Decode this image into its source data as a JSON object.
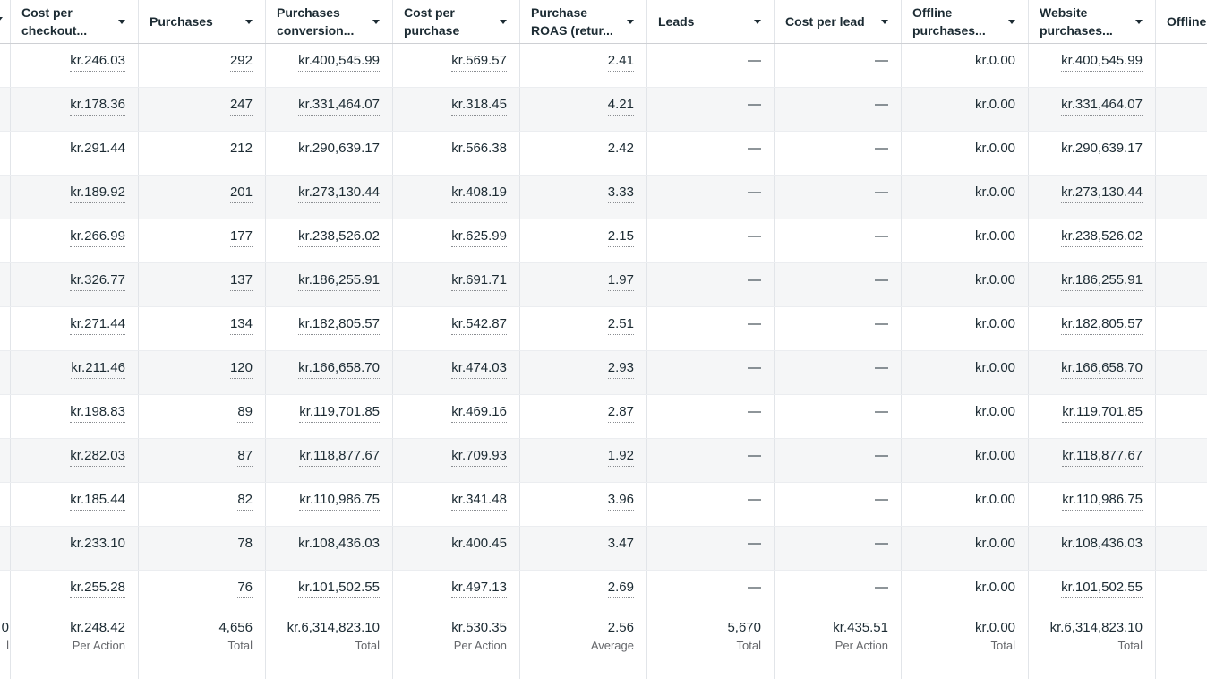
{
  "table": {
    "left_cutoff": {
      "footer_value_fragment": "0",
      "footer_label_fragment": "l"
    },
    "columns": [
      {
        "id": "cost-per-checkout",
        "label": "Cost per checkout...",
        "underline": true,
        "footer": {
          "value": "kr.248.42",
          "label": "Per Action"
        }
      },
      {
        "id": "purchases",
        "label": "Purchases",
        "underline": true,
        "footer": {
          "value": "4,656",
          "label": "Total"
        }
      },
      {
        "id": "purchases-conversion",
        "label": "Purchases conversion...",
        "underline": true,
        "footer": {
          "value": "kr.6,314,823.10",
          "label": "Total"
        }
      },
      {
        "id": "cost-per-purchase",
        "label": "Cost per purchase",
        "underline": true,
        "footer": {
          "value": "kr.530.35",
          "label": "Per Action"
        }
      },
      {
        "id": "purchase-roas",
        "label": "Purchase ROAS (retur...",
        "underline": true,
        "footer": {
          "value": "2.56",
          "label": "Average"
        }
      },
      {
        "id": "leads",
        "label": "Leads",
        "underline": false,
        "footer": {
          "value": "5,670",
          "label": "Total"
        }
      },
      {
        "id": "cost-per-lead",
        "label": "Cost per lead",
        "underline": false,
        "footer": {
          "value": "kr.435.51",
          "label": "Per Action"
        }
      },
      {
        "id": "offline-purchases",
        "label": "Offline purchases...",
        "underline": false,
        "footer": {
          "value": "kr.0.00",
          "label": "Total"
        }
      },
      {
        "id": "website-purchases",
        "label": "Website purchases...",
        "underline": true,
        "footer": {
          "value": "kr.6,314,823.10",
          "label": "Total"
        }
      },
      {
        "id": "offline-purchases-2",
        "label": "Offline purcha",
        "underline": false,
        "footer": {
          "value": "",
          "label": ""
        }
      }
    ],
    "rows": [
      [
        "kr.246.03",
        "292",
        "kr.400,545.99",
        "kr.569.57",
        "2.41",
        "—",
        "—",
        "kr.0.00",
        "kr.400,545.99",
        ""
      ],
      [
        "kr.178.36",
        "247",
        "kr.331,464.07",
        "kr.318.45",
        "4.21",
        "—",
        "—",
        "kr.0.00",
        "kr.331,464.07",
        ""
      ],
      [
        "kr.291.44",
        "212",
        "kr.290,639.17",
        "kr.566.38",
        "2.42",
        "—",
        "—",
        "kr.0.00",
        "kr.290,639.17",
        ""
      ],
      [
        "kr.189.92",
        "201",
        "kr.273,130.44",
        "kr.408.19",
        "3.33",
        "—",
        "—",
        "kr.0.00",
        "kr.273,130.44",
        ""
      ],
      [
        "kr.266.99",
        "177",
        "kr.238,526.02",
        "kr.625.99",
        "2.15",
        "—",
        "—",
        "kr.0.00",
        "kr.238,526.02",
        ""
      ],
      [
        "kr.326.77",
        "137",
        "kr.186,255.91",
        "kr.691.71",
        "1.97",
        "—",
        "—",
        "kr.0.00",
        "kr.186,255.91",
        ""
      ],
      [
        "kr.271.44",
        "134",
        "kr.182,805.57",
        "kr.542.87",
        "2.51",
        "—",
        "—",
        "kr.0.00",
        "kr.182,805.57",
        ""
      ],
      [
        "kr.211.46",
        "120",
        "kr.166,658.70",
        "kr.474.03",
        "2.93",
        "—",
        "—",
        "kr.0.00",
        "kr.166,658.70",
        ""
      ],
      [
        "kr.198.83",
        "89",
        "kr.119,701.85",
        "kr.469.16",
        "2.87",
        "—",
        "—",
        "kr.0.00",
        "kr.119,701.85",
        ""
      ],
      [
        "kr.282.03",
        "87",
        "kr.118,877.67",
        "kr.709.93",
        "1.92",
        "—",
        "—",
        "kr.0.00",
        "kr.118,877.67",
        ""
      ],
      [
        "kr.185.44",
        "82",
        "kr.110,986.75",
        "kr.341.48",
        "3.96",
        "—",
        "—",
        "kr.0.00",
        "kr.110,986.75",
        ""
      ],
      [
        "kr.233.10",
        "78",
        "kr.108,436.03",
        "kr.400.45",
        "3.47",
        "—",
        "—",
        "kr.0.00",
        "kr.108,436.03",
        ""
      ],
      [
        "kr.255.28",
        "76",
        "kr.101,502.55",
        "kr.497.13",
        "2.69",
        "—",
        "—",
        "kr.0.00",
        "kr.101,502.55",
        ""
      ]
    ]
  }
}
